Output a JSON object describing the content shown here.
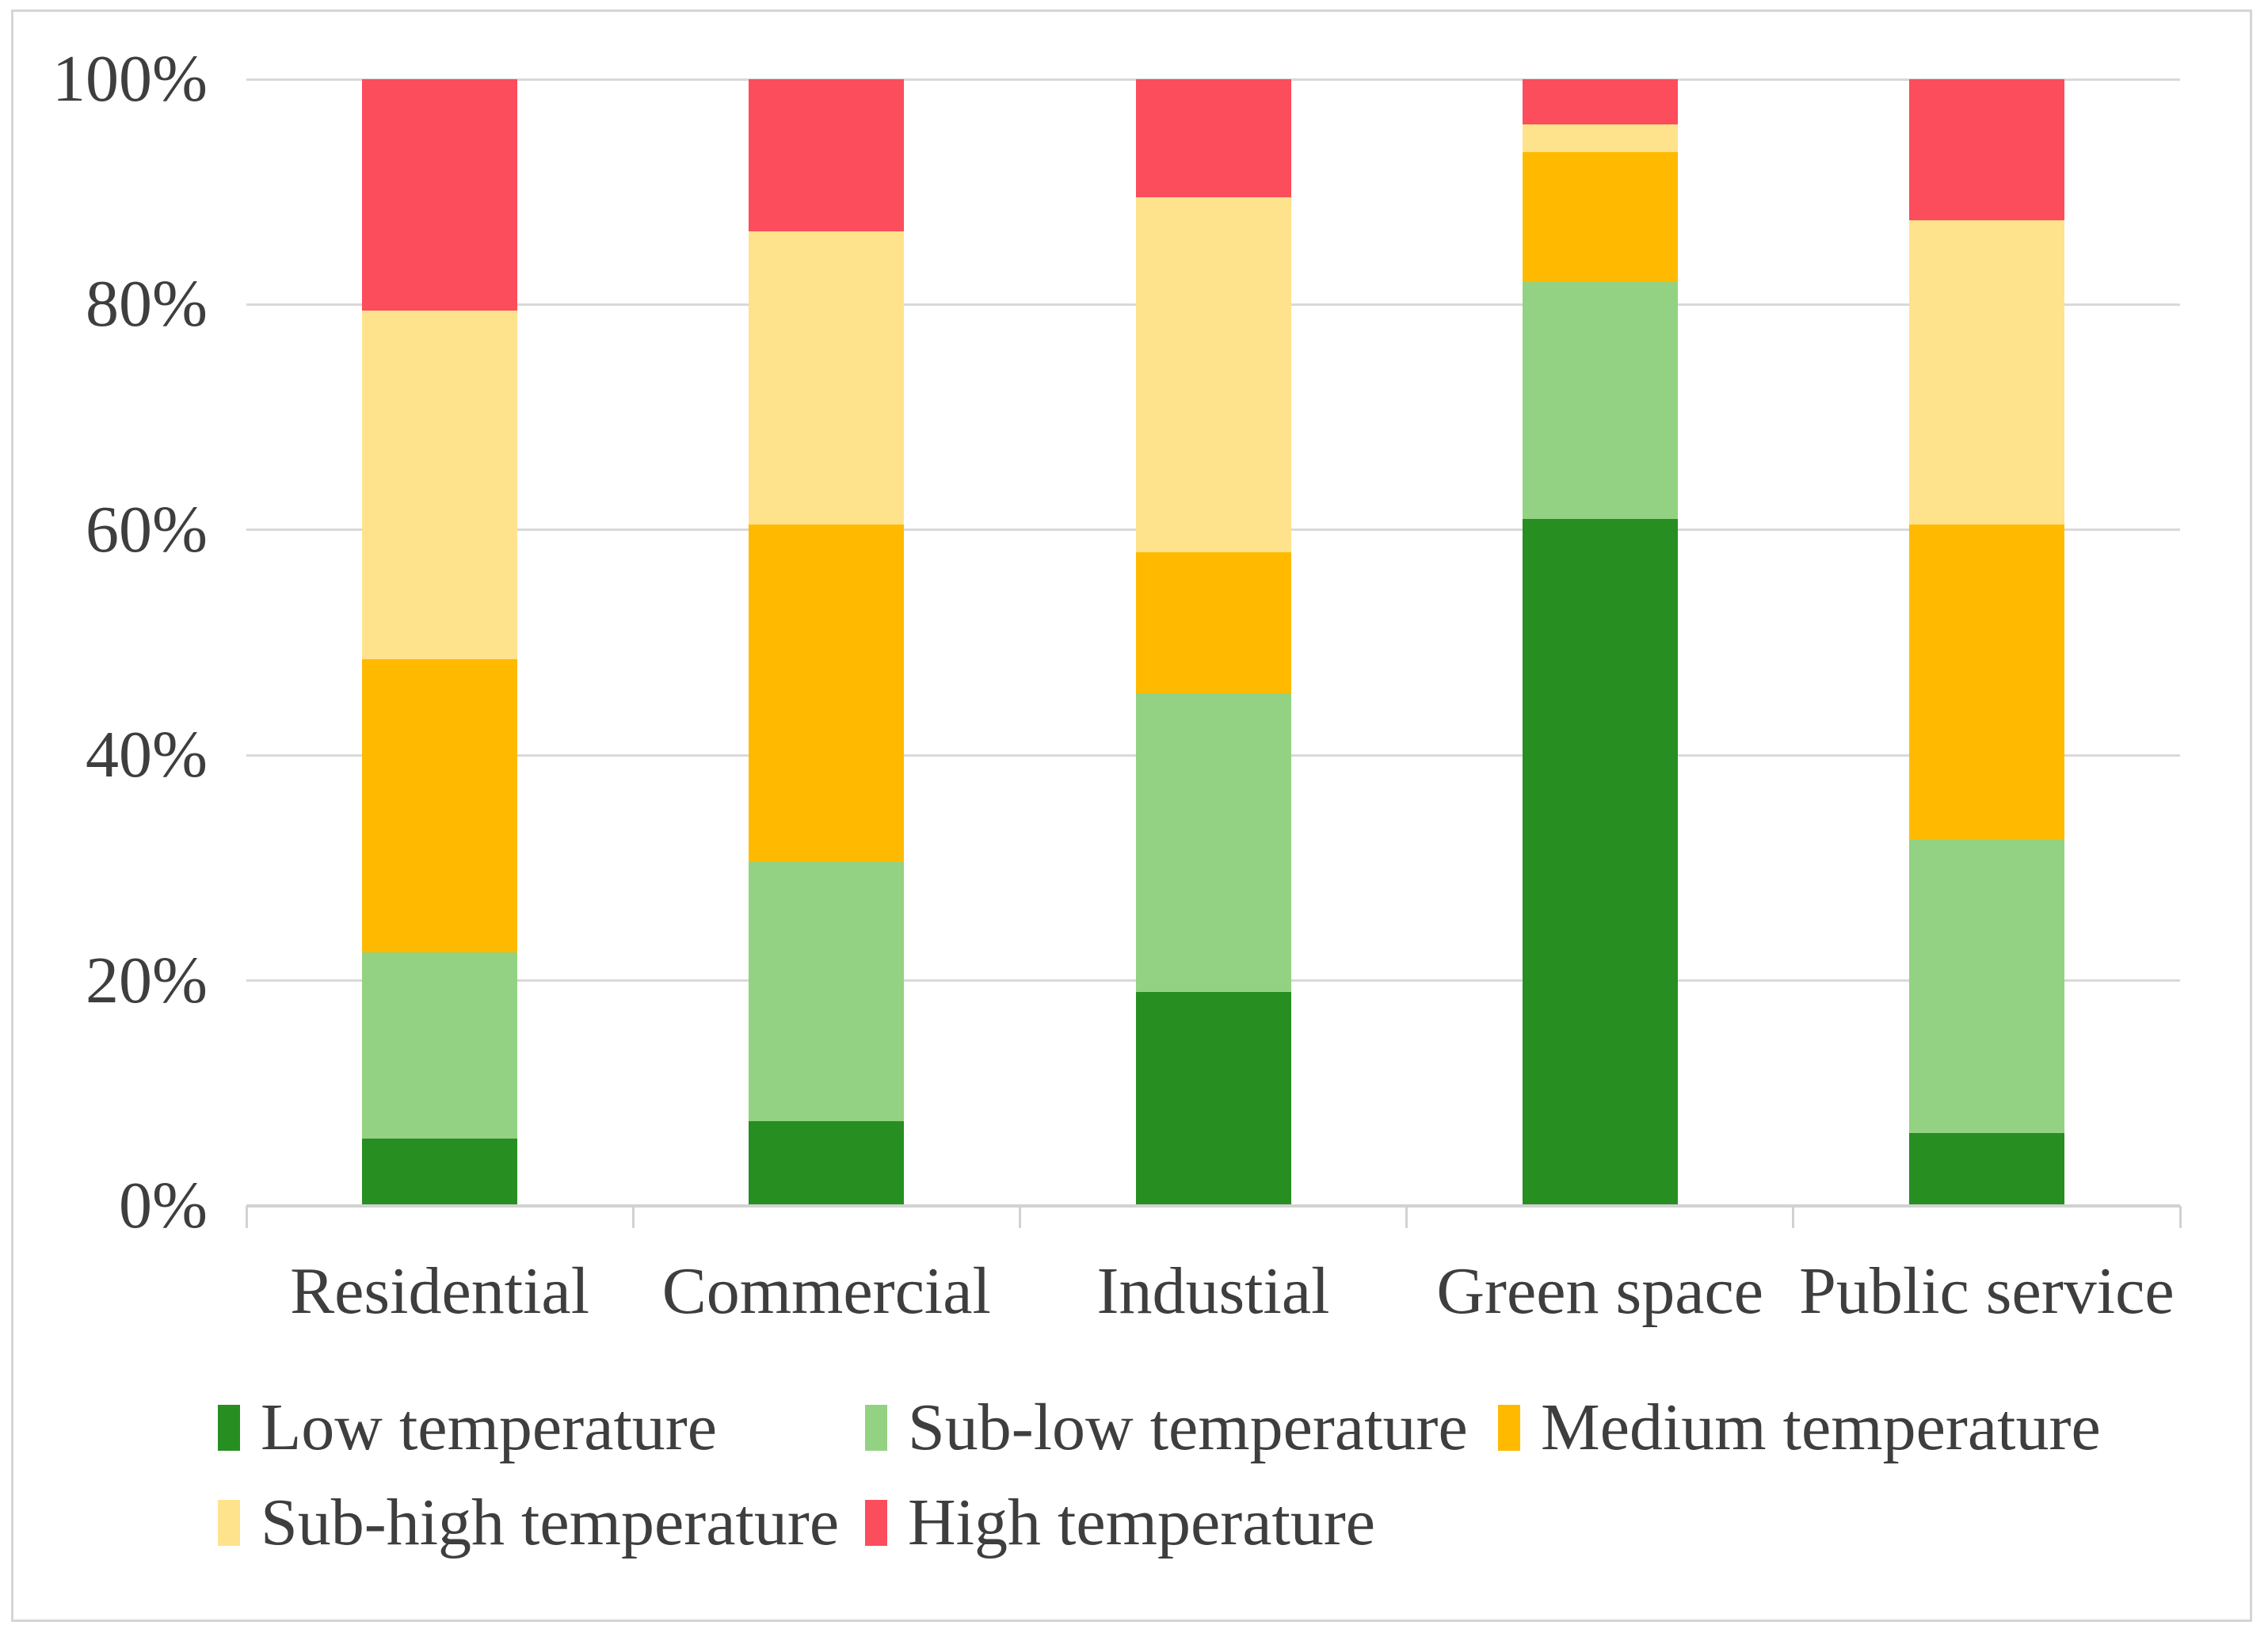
{
  "chart_data": {
    "type": "bar",
    "subtype": "stacked-100-percent",
    "categories": [
      "Residential",
      "Commercial",
      "Industial",
      "Green space",
      "Public service"
    ],
    "series": [
      {
        "name": "Low temperature",
        "color": "#278E22",
        "values": [
          6,
          7.5,
          19,
          61,
          6.5
        ]
      },
      {
        "name": "Sub-low temperature",
        "color": "#93D282",
        "values": [
          16.5,
          23,
          26.5,
          21,
          26
        ]
      },
      {
        "name": "Medium temperature",
        "color": "#FFBA00",
        "values": [
          26,
          30,
          12.5,
          11.5,
          28
        ]
      },
      {
        "name": "Sub-high temperature",
        "color": "#FFE38C",
        "values": [
          31,
          26,
          31.5,
          2.5,
          27
        ]
      },
      {
        "name": "High temperature",
        "color": "#FB4D5C",
        "values": [
          20.5,
          13.5,
          10.5,
          4,
          12.5
        ]
      }
    ],
    "title": "",
    "xlabel": "",
    "ylabel": "",
    "ylim": [
      0,
      100
    ],
    "y_tick_labels": [
      "0%",
      "20%",
      "40%",
      "60%",
      "80%",
      "100%"
    ],
    "grid": true,
    "legend_position": "bottom",
    "legend_rows": [
      [
        0,
        1,
        2
      ],
      [
        3,
        4
      ]
    ]
  },
  "styles": {
    "gridline_color": "#d9d9d9",
    "axis_color": "#d2d2d2",
    "text_color": "#3e3e3e",
    "frame_border_color": "#d5d5d5",
    "background": "#ffffff"
  }
}
